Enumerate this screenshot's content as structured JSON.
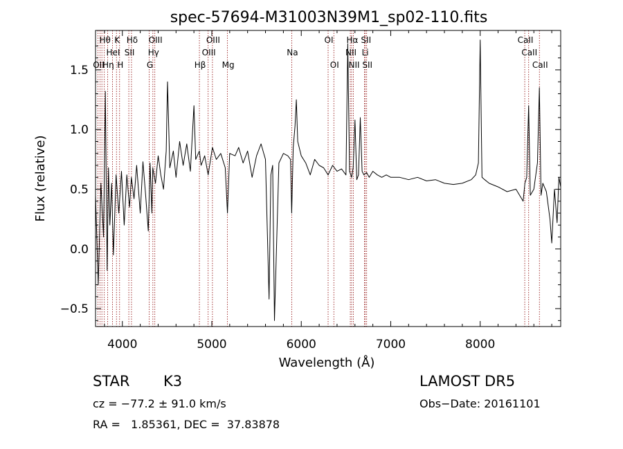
{
  "chart_data": {
    "type": "line",
    "title": "spec-57694-M31003N39M1_sp02-110.fits",
    "xlabel": "Wavelength (Å)",
    "ylabel": "Flux (relative)",
    "xlim": [
      3700,
      8900
    ],
    "ylim": [
      -0.65,
      1.83
    ],
    "xticks": [
      4000,
      5000,
      6000,
      7000,
      8000
    ],
    "yticks": [
      -0.5,
      0.0,
      0.5,
      1.0,
      1.5
    ],
    "ytick_labels": [
      "−0.5",
      "0.0",
      "0.5",
      "1.0",
      "1.5"
    ],
    "line_color": "#000000",
    "marker_color": "#8b0000",
    "series": [
      {
        "x": [
          3700,
          3730,
          3760,
          3790,
          3810,
          3830,
          3845,
          3860,
          3880,
          3900,
          3930,
          3960,
          3990,
          4020,
          4050,
          4080,
          4101,
          4130,
          4160,
          4200,
          4230,
          4260,
          4290,
          4310,
          4330,
          4340,
          4370,
          4400,
          4430,
          4460,
          4490,
          4505,
          4530,
          4570,
          4600,
          4640,
          4680,
          4720,
          4760,
          4800,
          4820,
          4861,
          4880,
          4920,
          4959,
          5007,
          5050,
          5100,
          5150,
          5175,
          5200,
          5260,
          5300,
          5350,
          5400,
          5450,
          5500,
          5550,
          5600,
          5640,
          5660,
          5680,
          5700,
          5750,
          5800,
          5850,
          5880,
          5893,
          5910,
          5930,
          5945,
          5960,
          6000,
          6050,
          6100,
          6150,
          6200,
          6250,
          6300,
          6350,
          6400,
          6450,
          6500,
          6520,
          6540,
          6563,
          6580,
          6600,
          6620,
          6640,
          6660,
          6680,
          6700,
          6730,
          6760,
          6800,
          6850,
          6900,
          6950,
          7000,
          7100,
          7200,
          7300,
          7400,
          7500,
          7600,
          7700,
          7800,
          7900,
          7950,
          7980,
          8000,
          8020,
          8050,
          8100,
          8200,
          8300,
          8400,
          8440,
          8480,
          8500,
          8520,
          8542,
          8560,
          8600,
          8640,
          8662,
          8680,
          8700,
          8740,
          8780,
          8800,
          8830,
          8860,
          8880,
          8900
        ],
        "y": [
          0.45,
          -0.3,
          0.55,
          0.1,
          1.32,
          -0.18,
          0.68,
          0.2,
          0.55,
          -0.05,
          0.62,
          0.3,
          0.65,
          0.2,
          0.62,
          0.35,
          0.6,
          0.42,
          0.7,
          0.3,
          0.73,
          0.45,
          0.15,
          0.72,
          0.3,
          0.68,
          0.55,
          0.78,
          0.62,
          0.5,
          0.82,
          1.4,
          0.68,
          0.82,
          0.6,
          0.9,
          0.7,
          0.88,
          0.65,
          1.2,
          0.75,
          0.82,
          0.7,
          0.78,
          0.62,
          0.85,
          0.75,
          0.8,
          0.68,
          0.3,
          0.8,
          0.78,
          0.85,
          0.72,
          0.82,
          0.6,
          0.78,
          0.88,
          0.75,
          -0.42,
          0.62,
          0.7,
          -0.6,
          0.72,
          0.8,
          0.78,
          0.75,
          0.3,
          0.85,
          1.03,
          1.25,
          0.9,
          0.78,
          0.72,
          0.62,
          0.75,
          0.7,
          0.68,
          0.62,
          0.7,
          0.65,
          0.67,
          0.62,
          1.72,
          0.65,
          0.6,
          0.68,
          1.08,
          0.58,
          0.62,
          1.1,
          0.65,
          0.62,
          0.64,
          0.6,
          0.65,
          0.62,
          0.6,
          0.62,
          0.6,
          0.6,
          0.58,
          0.6,
          0.57,
          0.58,
          0.55,
          0.54,
          0.55,
          0.58,
          0.62,
          0.72,
          1.75,
          0.6,
          0.58,
          0.55,
          0.52,
          0.48,
          0.5,
          0.45,
          0.4,
          0.55,
          0.6,
          1.2,
          0.45,
          0.5,
          0.72,
          1.35,
          0.45,
          0.55,
          0.48,
          0.25,
          0.05,
          0.5,
          0.22,
          0.6,
          0.52
        ]
      }
    ],
    "line_markers": [
      {
        "x": 3727,
        "label": "OII",
        "row": 2
      },
      {
        "x": 3750,
        "label": "",
        "row": 0
      },
      {
        "x": 3771,
        "label": "",
        "row": 0
      },
      {
        "x": 3798,
        "label": "Hθ",
        "row": 0
      },
      {
        "x": 3835,
        "label": "Hη",
        "row": 2
      },
      {
        "x": 3889,
        "label": "HeI",
        "row": 1
      },
      {
        "x": 3934,
        "label": "K",
        "row": 0
      },
      {
        "x": 3969,
        "label": "H",
        "row": 2
      },
      {
        "x": 4072,
        "label": "SII",
        "row": 1
      },
      {
        "x": 4102,
        "label": "Hδ",
        "row": 0
      },
      {
        "x": 4300,
        "label": "G",
        "row": 2
      },
      {
        "x": 4341,
        "label": "Hγ",
        "row": 1
      },
      {
        "x": 4363,
        "label": "OIII",
        "row": 0
      },
      {
        "x": 4861,
        "label": "Hβ",
        "row": 2
      },
      {
        "x": 4959,
        "label": "OIII",
        "row": 1
      },
      {
        "x": 5007,
        "label": "OIII",
        "row": 0
      },
      {
        "x": 5175,
        "label": "Mg",
        "row": 2
      },
      {
        "x": 5893,
        "label": "Na",
        "row": 1
      },
      {
        "x": 6300,
        "label": "OI",
        "row": 0
      },
      {
        "x": 6364,
        "label": "OI",
        "row": 2
      },
      {
        "x": 6548,
        "label": "NII",
        "row": 1
      },
      {
        "x": 6563,
        "label": "Hα",
        "row": 0
      },
      {
        "x": 6583,
        "label": "NII",
        "row": 2
      },
      {
        "x": 6707,
        "label": "Li",
        "row": 1
      },
      {
        "x": 6716,
        "label": "SII",
        "row": 0
      },
      {
        "x": 6731,
        "label": "SII",
        "row": 2
      },
      {
        "x": 8498,
        "label": "CaII",
        "row": 0
      },
      {
        "x": 8542,
        "label": "CaII",
        "row": 1
      },
      {
        "x": 8662,
        "label": "CaII",
        "row": 2
      }
    ]
  },
  "info": {
    "object_class": "STAR",
    "subclass": "K3",
    "redshift": "cz = −77.2 ± 91.0 km/s",
    "coords": "RA =   1.85361, DEC =  37.83878",
    "survey": "LAMOST DR5",
    "obs_date": "Obs−Date: 20161101"
  }
}
